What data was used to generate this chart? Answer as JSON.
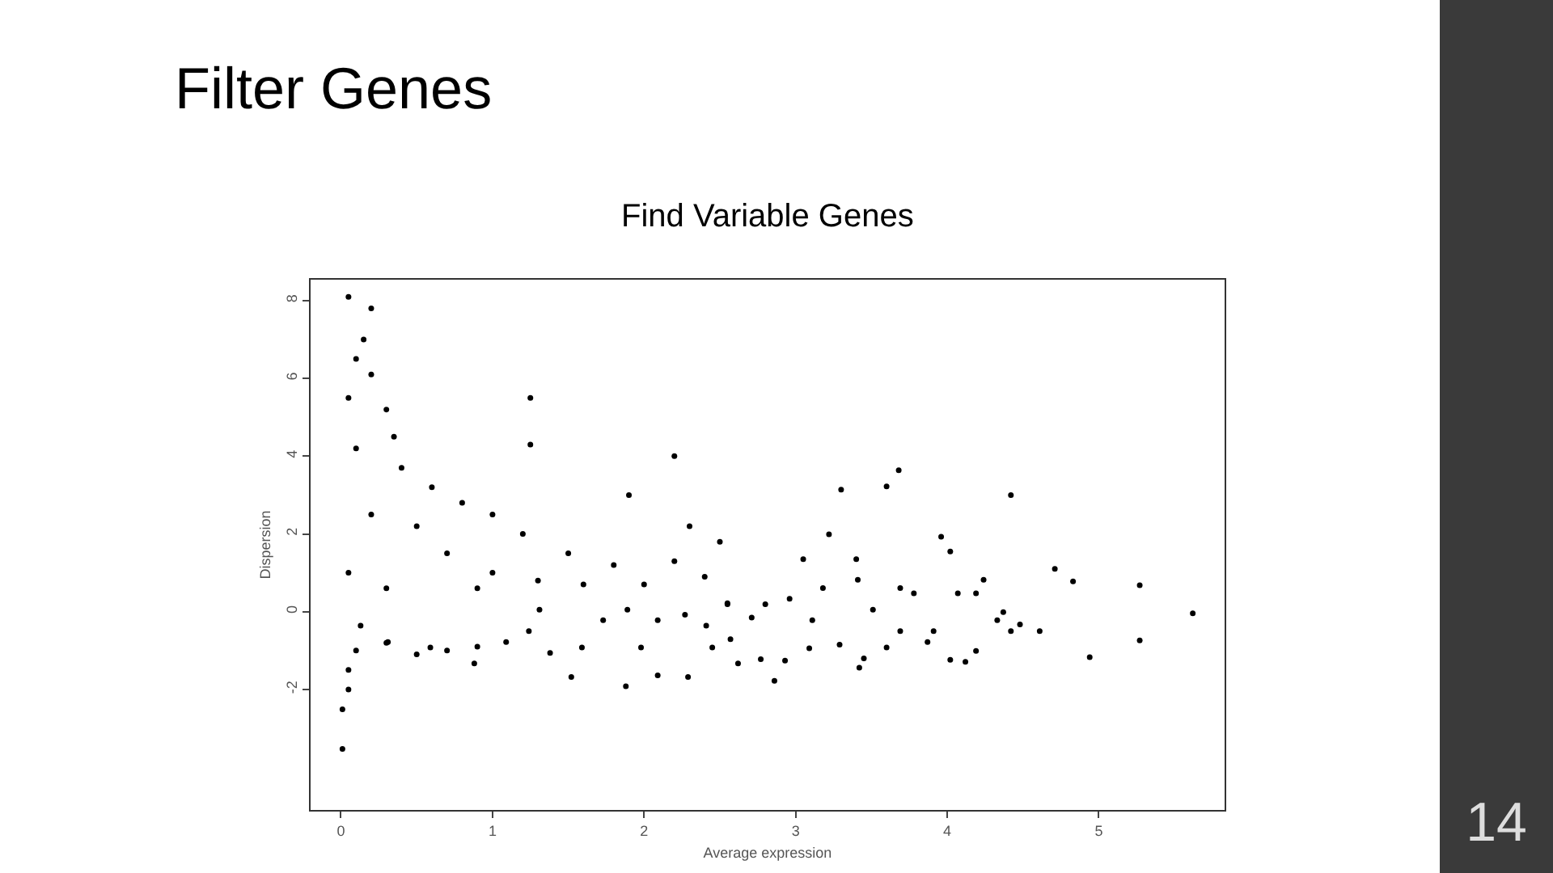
{
  "chart_data": {
    "type": "scatter",
    "title": "Filter Genes",
    "subtitle": "Find Variable Genes",
    "xlabel": "Average expression",
    "ylabel": "Dispersion",
    "annotations": [
      "14"
    ],
    "xlim": [
      -0.2,
      5.83
    ],
    "ylim": [
      -5.1,
      8.54
    ],
    "xticks": [
      0,
      1,
      2,
      3,
      4,
      5
    ],
    "yticks": [
      -2,
      0,
      2,
      4,
      6,
      8
    ],
    "grid": false,
    "marker": "circle",
    "series": [
      {
        "color": "#000000",
        "x": [
          3.68,
          3.6,
          3.3,
          4.42,
          3.96,
          4.02,
          4.71,
          4.83,
          5.27,
          5.62,
          5.27,
          4.94,
          4.61,
          4.48,
          4.37,
          4.24,
          4.19,
          4.07,
          4.12,
          4.02,
          4.19,
          3.87,
          3.91,
          3.69,
          3.78,
          3.42,
          3.45,
          3.51,
          3.41,
          3.4,
          3.18,
          3.22,
          3.05,
          2.96,
          3.11,
          3.09,
          3.29,
          3.69,
          3.6,
          2.86,
          2.77,
          2.93,
          2.8,
          2.71,
          2.62,
          2.55,
          2.45,
          4.42,
          4.33,
          0.01,
          0.01,
          1.88,
          2.09,
          2.29,
          2.57,
          2.41,
          1.98,
          1.52,
          1.38,
          0.88,
          1.09,
          1.73,
          2.09,
          2.55,
          1.89,
          1.31,
          2.27,
          1.59,
          1.24,
          0.59,
          0.31,
          0.13,
          0.05,
          0.2,
          0.15,
          0.1,
          0.2,
          0.05,
          0.3,
          0.35,
          0.1,
          0.4,
          0.6,
          0.8,
          1.0,
          1.2,
          1.5,
          1.8,
          0.5,
          0.7,
          1.0,
          1.3,
          0.2,
          0.05,
          0.3,
          0.9,
          1.6,
          2.0,
          2.4,
          2.2,
          1.25,
          1.25,
          2.2,
          2.5,
          2.3,
          1.9,
          0.1,
          0.3,
          0.5,
          0.7,
          0.9,
          0.05,
          0.05
        ],
        "values": [
          3.64,
          3.22,
          3.14,
          3.0,
          1.93,
          1.55,
          1.1,
          0.78,
          0.68,
          -0.04,
          -0.74,
          -1.17,
          -0.5,
          -0.33,
          -0.01,
          0.82,
          0.47,
          0.47,
          -1.29,
          -1.24,
          -1.01,
          -0.78,
          -0.5,
          0.61,
          0.47,
          -1.44,
          -1.2,
          0.05,
          0.82,
          1.35,
          0.61,
          1.99,
          1.35,
          0.33,
          -0.22,
          -0.94,
          -0.85,
          -0.5,
          -0.92,
          -1.78,
          -1.22,
          -1.26,
          0.19,
          -0.15,
          -1.33,
          0.22,
          -0.92,
          -0.5,
          -0.22,
          -3.53,
          -2.51,
          -1.92,
          -1.64,
          -1.68,
          -0.71,
          -0.36,
          -0.92,
          -1.68,
          -1.06,
          -1.33,
          -0.78,
          -0.22,
          -0.22,
          0.19,
          0.05,
          0.05,
          -0.08,
          -0.92,
          -0.5,
          -0.92,
          -0.78,
          -0.36,
          8.1,
          7.8,
          7.0,
          6.5,
          6.1,
          5.5,
          5.2,
          4.5,
          4.2,
          3.7,
          3.2,
          2.8,
          2.5,
          2.0,
          1.5,
          1.2,
          2.2,
          1.5,
          1.0,
          0.8,
          2.5,
          1.0,
          0.6,
          0.6,
          0.7,
          0.7,
          0.9,
          1.3,
          5.5,
          4.3,
          4.0,
          1.8,
          2.2,
          3.0,
          -1.0,
          -0.8,
          -1.1,
          -1.0,
          -0.9,
          -1.5,
          -2.0
        ]
      }
    ]
  }
}
